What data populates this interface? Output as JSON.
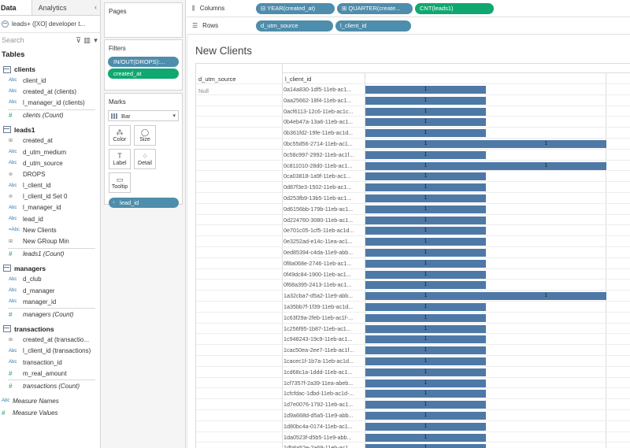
{
  "datapane": {
    "tabs": [
      "Data",
      "Analytics"
    ],
    "collapse_glyph": "‹",
    "datasource": "leads+ ([XO] developer t...",
    "search_placeholder": "Search",
    "tables_heading": "Tables",
    "groups": [
      {
        "name": "clients",
        "fields": [
          {
            "type": "Abc",
            "label": "client_id",
            "kind": "dim"
          },
          {
            "type": "Abc",
            "label": "created_at (clients)",
            "kind": "dim"
          },
          {
            "type": "Abc",
            "label": "l_manager_id (clients)",
            "kind": "dim"
          },
          {
            "type": "#",
            "label": "clients (Count)",
            "kind": "meas",
            "italic": true
          }
        ]
      },
      {
        "name": "leads1",
        "fields": [
          {
            "type": "⊞",
            "label": "created_at",
            "kind": "dim"
          },
          {
            "type": "Abc",
            "label": "d_utm_medium",
            "kind": "dim"
          },
          {
            "type": "Abc",
            "label": "d_utm_source",
            "kind": "dim"
          },
          {
            "type": "⊚",
            "label": "DROPS",
            "kind": "dim"
          },
          {
            "type": "Abc",
            "label": "l_client_id",
            "kind": "dim"
          },
          {
            "type": "⊚",
            "label": "l_client_id Set 0",
            "kind": "dim"
          },
          {
            "type": "Abc",
            "label": "l_manager_id",
            "kind": "dim"
          },
          {
            "type": "Abc",
            "label": "lead_id",
            "kind": "dim"
          },
          {
            "type": "=Abc",
            "label": "New Clients",
            "kind": "dim"
          },
          {
            "type": "⊞",
            "label": "New GRoup Min",
            "kind": "dim"
          },
          {
            "type": "#",
            "label": "leads1 (Count)",
            "kind": "meas",
            "italic": true
          }
        ]
      },
      {
        "name": "managers",
        "fields": [
          {
            "type": "Abc",
            "label": "d_club",
            "kind": "dim"
          },
          {
            "type": "Abc",
            "label": "d_manager",
            "kind": "dim"
          },
          {
            "type": "Abc",
            "label": "manager_id",
            "kind": "dim"
          },
          {
            "type": "#",
            "label": "managers (Count)",
            "kind": "meas",
            "italic": true
          }
        ]
      },
      {
        "name": "transactions",
        "fields": [
          {
            "type": "⊞",
            "label": "created_at (transactio...",
            "kind": "dim"
          },
          {
            "type": "Abc",
            "label": "l_client_id (transactions)",
            "kind": "dim"
          },
          {
            "type": "Abc",
            "label": "transaction_id",
            "kind": "dim"
          },
          {
            "type": "#",
            "label": "m_real_amount",
            "kind": "meas"
          },
          {
            "type": "#",
            "label": "transactions (Count)",
            "kind": "meas",
            "italic": true
          }
        ]
      }
    ],
    "extras": [
      {
        "type": "Abc",
        "label": "Measure Names"
      },
      {
        "type": "#",
        "label": "Measure Values"
      }
    ]
  },
  "cards": {
    "pages_title": "Pages",
    "filters_title": "Filters",
    "filters": [
      {
        "label": "IN/OUT(DROPS):...",
        "color": "blue"
      },
      {
        "label": "created_at",
        "color": "green"
      }
    ],
    "marks_title": "Marks",
    "mark_type": "Bar",
    "mark_buttons": [
      {
        "label": "Color",
        "icon": "⁂",
        "name": "color-button"
      },
      {
        "label": "Size",
        "icon": "◯",
        "name": "size-button"
      },
      {
        "label": "Label",
        "icon": "T",
        "name": "label-button"
      },
      {
        "label": "Detail",
        "icon": "⁘",
        "name": "detail-button"
      },
      {
        "label": "Tooltip",
        "icon": "▭",
        "name": "tooltip-button"
      }
    ],
    "lead_pill": "lead_id"
  },
  "shelves": {
    "columns_label": "Columns",
    "columns_pills": [
      {
        "label": "⊟ YEAR(created_at)",
        "color": "blue",
        "w": 100
      },
      {
        "label": "⊞ QUARTER(create...",
        "color": "blue",
        "w": 96
      },
      {
        "label": "CNT(leads1)",
        "color": "green",
        "w": 100
      }
    ],
    "rows_label": "Rows",
    "rows_pills": [
      {
        "label": "d_utm_source",
        "color": "blue",
        "w": 98
      },
      {
        "label": "l_client_id",
        "color": "blue",
        "w": 96
      }
    ]
  },
  "view": {
    "title": "New Clients",
    "col_headers": [
      "d_utm_source",
      "l_client_id"
    ],
    "utm_value": "Null"
  },
  "chart_data": {
    "type": "bar",
    "columns": 2,
    "rows": [
      {
        "id": "0a14a830-1df5-11eb-ac1...",
        "values": [
          1
        ]
      },
      {
        "id": "0aa25662-18f4-11eb-ac1...",
        "values": [
          1
        ]
      },
      {
        "id": "0acf6113-12c6-11eb-ac1c...",
        "values": [
          1
        ]
      },
      {
        "id": "0b4eb47a-13a6-11eb-ac1...",
        "values": [
          1
        ]
      },
      {
        "id": "0b361fd2-19fe-11eb-ac1d...",
        "values": [
          1
        ]
      },
      {
        "id": "0bc55d56-2714-11eb-ac1...",
        "values": [
          1,
          1
        ]
      },
      {
        "id": "0c58c997-2992-11eb-ac1f...",
        "values": [
          1
        ]
      },
      {
        "id": "0c811010-28d0-11eb-ac1...",
        "values": [
          1,
          1
        ]
      },
      {
        "id": "0ca03818-1a9f-11eb-ac1...",
        "values": [
          1
        ]
      },
      {
        "id": "0d87f3e3-1502-11eb-ac1...",
        "values": [
          1
        ]
      },
      {
        "id": "0d253fb9-13b5-11eb-ac1...",
        "values": [
          1
        ]
      },
      {
        "id": "0d6156bb-179b-11eb-ac1...",
        "values": [
          1
        ]
      },
      {
        "id": "0d224760-3080-11eb-ac1...",
        "values": [
          1
        ]
      },
      {
        "id": "0e701c05-1cf5-11eb-ac1d...",
        "values": [
          1
        ]
      },
      {
        "id": "0e3252ad-e14c-11ea-ac1...",
        "values": [
          1
        ]
      },
      {
        "id": "0ed85394-c4da-11e9-abb...",
        "values": [
          1
        ]
      },
      {
        "id": "0f8a068e-2746-11eb-ac1...",
        "values": [
          1
        ]
      },
      {
        "id": "0f49dc84-1900-11eb-ac1...",
        "values": [
          1
        ]
      },
      {
        "id": "0f68a395-2413-11eb-ac1...",
        "values": [
          1
        ]
      },
      {
        "id": "1a32cba7-d5a2-11e9-abb...",
        "values": [
          1,
          1
        ]
      },
      {
        "id": "1a35bb7f-1f39-11eb-ac1d...",
        "values": [
          1
        ]
      },
      {
        "id": "1c63f29a-2feb-11eb-ac1f-...",
        "values": [
          1
        ]
      },
      {
        "id": "1c256f95-1b87-11eb-ac1...",
        "values": [
          1
        ]
      },
      {
        "id": "1c948243-19c9-11eb-ac1...",
        "values": [
          1
        ]
      },
      {
        "id": "1cac50ea-2ee7-11eb-ac1f...",
        "values": [
          1
        ]
      },
      {
        "id": "1cacec1f-1b7a-11eb-ac1d...",
        "values": [
          1
        ]
      },
      {
        "id": "1cd68c1a-1ddd-11eb-ac1...",
        "values": [
          1
        ]
      },
      {
        "id": "1cf7357f-2a39-11ea-abeb...",
        "values": [
          1
        ]
      },
      {
        "id": "1cfcfdac-1dbd-11eb-ac1d-...",
        "values": [
          1
        ]
      },
      {
        "id": "1d7e0076-1792-11eb-ac1...",
        "values": [
          1
        ]
      },
      {
        "id": "1d9a668d-d5a5-11e9-abb...",
        "values": [
          1
        ]
      },
      {
        "id": "1d80bc4a-0174-11eb-ac1...",
        "values": [
          1
        ]
      },
      {
        "id": "1da0523f-d5b5-11e9-abb...",
        "values": [
          1
        ]
      },
      {
        "id": "1db8a52e-2a69-11eb-ac1...",
        "values": [
          1
        ]
      }
    ]
  }
}
